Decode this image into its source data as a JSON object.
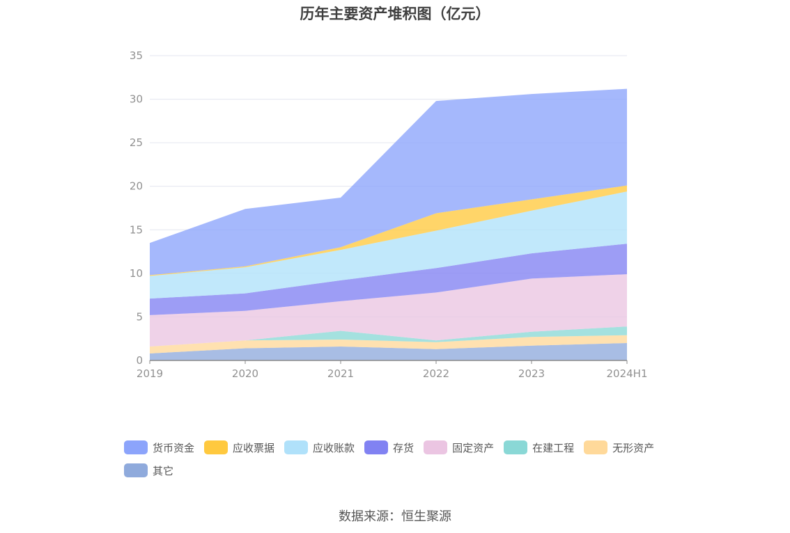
{
  "source_text": "数据来源：恒生聚源",
  "chart_data": {
    "type": "area",
    "stacked": true,
    "title": "历年主要资产堆积图（亿元）",
    "xlabel": "",
    "ylabel": "",
    "ylim": [
      0,
      35
    ],
    "yticks": [
      "0",
      "5",
      "10",
      "15",
      "20",
      "25",
      "30",
      "35"
    ],
    "categories": [
      "2019",
      "2020",
      "2021",
      "2022",
      "2023",
      "2024H1"
    ],
    "legend_position": "bottom",
    "series": [
      {
        "name": "其它",
        "color": "#8faadc",
        "values": [
          0.8,
          1.4,
          1.6,
          1.3,
          1.7,
          2.0
        ]
      },
      {
        "name": "无形资产",
        "color": "#ffd99a",
        "values": [
          0.8,
          0.9,
          0.8,
          0.8,
          1.0,
          0.9
        ]
      },
      {
        "name": "在建工程",
        "color": "#8ad8d6",
        "values": [
          0.0,
          0.0,
          1.0,
          0.2,
          0.6,
          1.0
        ]
      },
      {
        "name": "固定资产",
        "color": "#ebc5e2",
        "values": [
          3.6,
          3.4,
          3.4,
          5.5,
          6.1,
          6.0
        ]
      },
      {
        "name": "存货",
        "color": "#8182f2",
        "values": [
          1.9,
          2.0,
          2.4,
          2.8,
          2.9,
          3.5
        ]
      },
      {
        "name": "应收账款",
        "color": "#b0e1fa",
        "values": [
          2.6,
          3.0,
          3.5,
          4.3,
          4.9,
          6.0
        ]
      },
      {
        "name": "应收票据",
        "color": "#ffc93f",
        "values": [
          0.1,
          0.1,
          0.3,
          2.0,
          1.3,
          0.7
        ]
      },
      {
        "name": "货币资金",
        "color": "#8ca4fb",
        "values": [
          3.7,
          6.6,
          5.7,
          12.9,
          12.1,
          11.1
        ]
      }
    ],
    "legend_order": [
      "货币资金",
      "应收票据",
      "应收账款",
      "存货",
      "固定资产",
      "在建工程",
      "无形资产",
      "其它"
    ]
  }
}
